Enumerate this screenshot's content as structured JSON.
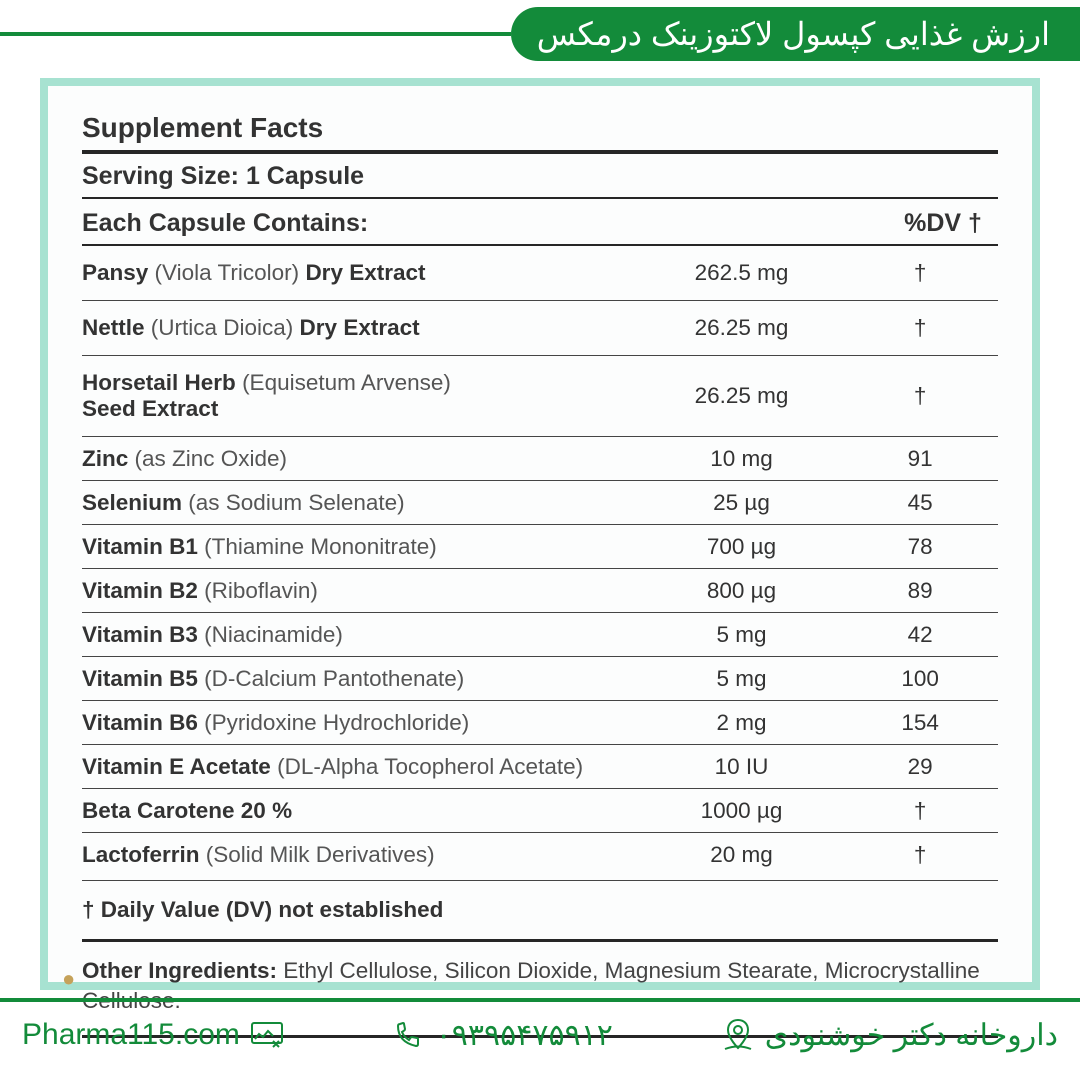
{
  "colors": {
    "brand_green": "#138b3a",
    "panel_border": "#a7e2d1",
    "panel_bg": "#fcfdfd",
    "text_dark": "#333333",
    "rule_dark": "#262626",
    "rule_med": "#454545"
  },
  "top_title": "ارزش غذایی کپسول لاکتوزینک درمکس",
  "facts": {
    "title": "Supplement Facts",
    "serving": "Serving Size: 1 Capsule",
    "header_left": "Each Capsule Contains:",
    "header_dv": "%DV †",
    "rows": [
      {
        "bold": "Pansy",
        "light": " (Viola Tricolor) ",
        "bold2": "Dry Extract",
        "amount": "262.5 mg",
        "dv": "†",
        "tall": true
      },
      {
        "bold": "Nettle",
        "light": " (Urtica Dioica) ",
        "bold2": "Dry Extract",
        "amount": "26.25 mg",
        "dv": "†",
        "tall": true
      },
      {
        "bold": "Horsetail Herb",
        "light": " (Equisetum Arvense)",
        "line2_bold": "Seed Extract",
        "amount": "26.25 mg",
        "dv": "†",
        "tall": true
      },
      {
        "bold": "Zinc",
        "light": " (as Zinc Oxide)",
        "amount": "10 mg",
        "dv": "91"
      },
      {
        "bold": "Selenium",
        "light": " (as Sodium Selenate)",
        "amount": "25 µg",
        "dv": "45"
      },
      {
        "bold": "Vitamin B1",
        "light": " (Thiamine Mononitrate)",
        "amount": "700 µg",
        "dv": "78"
      },
      {
        "bold": "Vitamin B2",
        "light": " (Riboflavin)",
        "amount": "800 µg",
        "dv": "89"
      },
      {
        "bold": "Vitamin B3",
        "light": " (Niacinamide)",
        "amount": "5 mg",
        "dv": "42"
      },
      {
        "bold": "Vitamin B5",
        "light": " (D-Calcium Pantothenate)",
        "amount": "5 mg",
        "dv": "100"
      },
      {
        "bold": "Vitamin B6",
        "light": " (Pyridoxine Hydrochloride)",
        "amount": "2 mg",
        "dv": "154"
      },
      {
        "bold": "Vitamin E Acetate",
        "light": " (DL-Alpha Tocopherol Acetate)",
        "amount": "10 IU",
        "dv": "29"
      },
      {
        "bold": "Beta Carotene 20 %",
        "light": "",
        "amount": "1000 µg",
        "dv": "†"
      },
      {
        "bold": "Lactoferrin",
        "light": " (Solid Milk Derivatives)",
        "amount": "20 mg",
        "dv": "†"
      }
    ],
    "footnote_sym": "†",
    "footnote_bold": " Daily Value (DV) not established",
    "other_bold": "Other Ingredients:",
    "other_text": " Ethyl Cellulose, Silicon Dioxide, Magnesium Stearate, Microcrystalline Cellulose."
  },
  "footer": {
    "website": "Pharma115.com",
    "phone": "۰۹۳۹۵۴۷۵۹۱۲",
    "pharmacy": "داروخانه دکتر خوشنودی"
  }
}
